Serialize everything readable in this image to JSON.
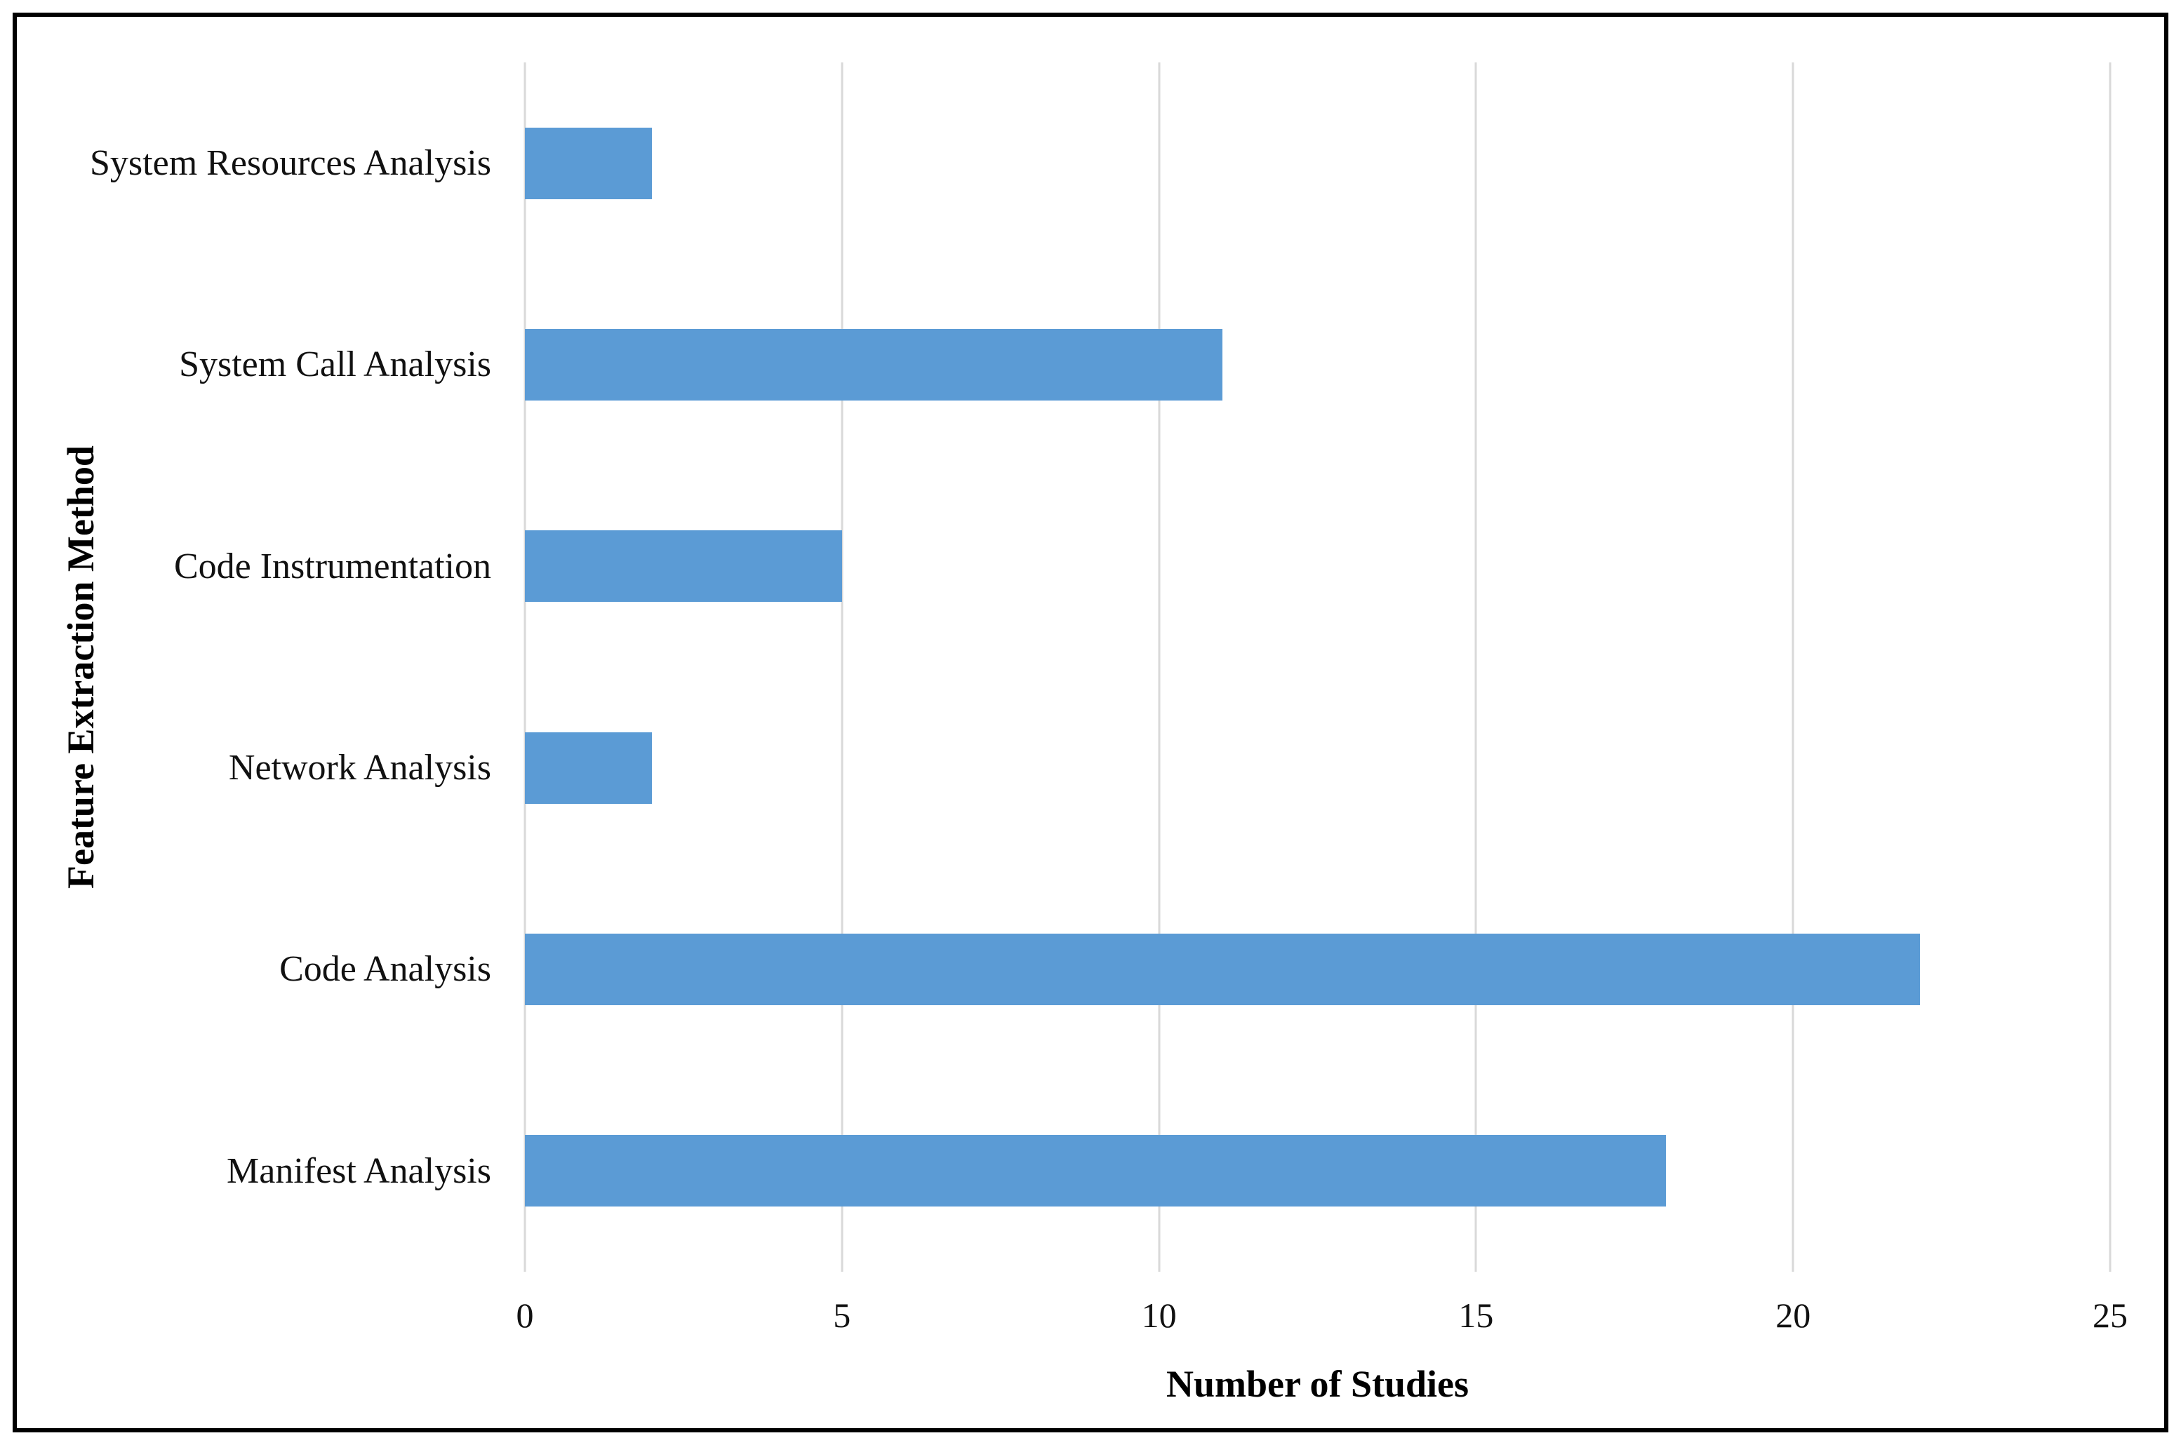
{
  "chart_data": {
    "type": "bar",
    "orientation": "horizontal",
    "title": "",
    "xlabel": "Number of Studies",
    "ylabel": "Feature Extraction Method",
    "categories": [
      "System Resources Analysis",
      "System Call Analysis",
      "Code Instrumentation",
      "Network Analysis",
      "Code Analysis",
      "Manifest Analysis"
    ],
    "values": [
      2,
      11,
      5,
      2,
      22,
      18
    ],
    "xlim": [
      0,
      25
    ],
    "xticks": [
      0,
      5,
      10,
      15,
      20,
      25
    ],
    "grid": true,
    "legend": false,
    "bar_color": "#5b9bd5",
    "gridline_color": "#d9d9d9",
    "frame_color": "#000000"
  }
}
